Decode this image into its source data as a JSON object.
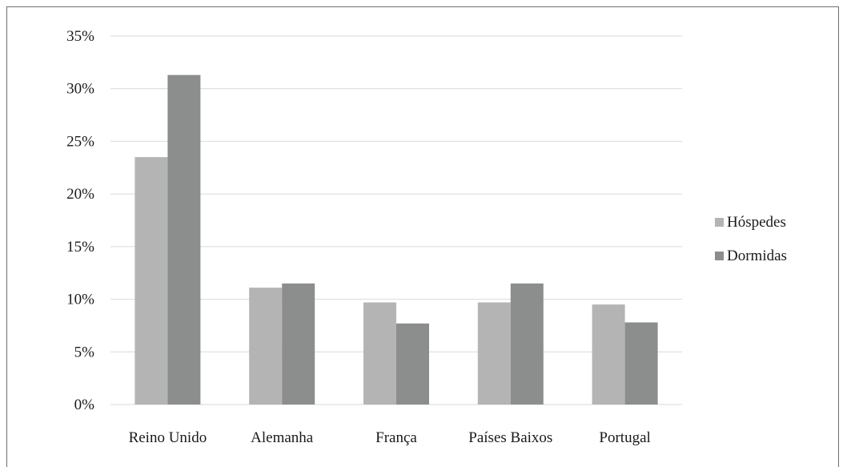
{
  "chart_data": {
    "type": "bar",
    "title": "",
    "xlabel": "",
    "ylabel": "",
    "categories": [
      "Reino Unido",
      "Alemanha",
      "França",
      "Países Baixos",
      "Portugal"
    ],
    "series": [
      {
        "name": "Hóspedes",
        "values": [
          23.5,
          11.1,
          9.7,
          9.7,
          9.5
        ],
        "color": "#b4b4b4"
      },
      {
        "name": "Dormidas",
        "values": [
          31.3,
          11.5,
          7.7,
          11.5,
          7.8
        ],
        "color": "#8b8e8d"
      }
    ],
    "ylim": [
      0,
      35
    ],
    "yticks": [
      0,
      5,
      10,
      15,
      20,
      25,
      30,
      35
    ],
    "ytick_labels": [
      "0%",
      "5%",
      "10%",
      "15%",
      "20%",
      "25%",
      "30%",
      "35%"
    ],
    "grid": true,
    "gridline_color": "#d9d9d9",
    "legend_position": "right"
  }
}
